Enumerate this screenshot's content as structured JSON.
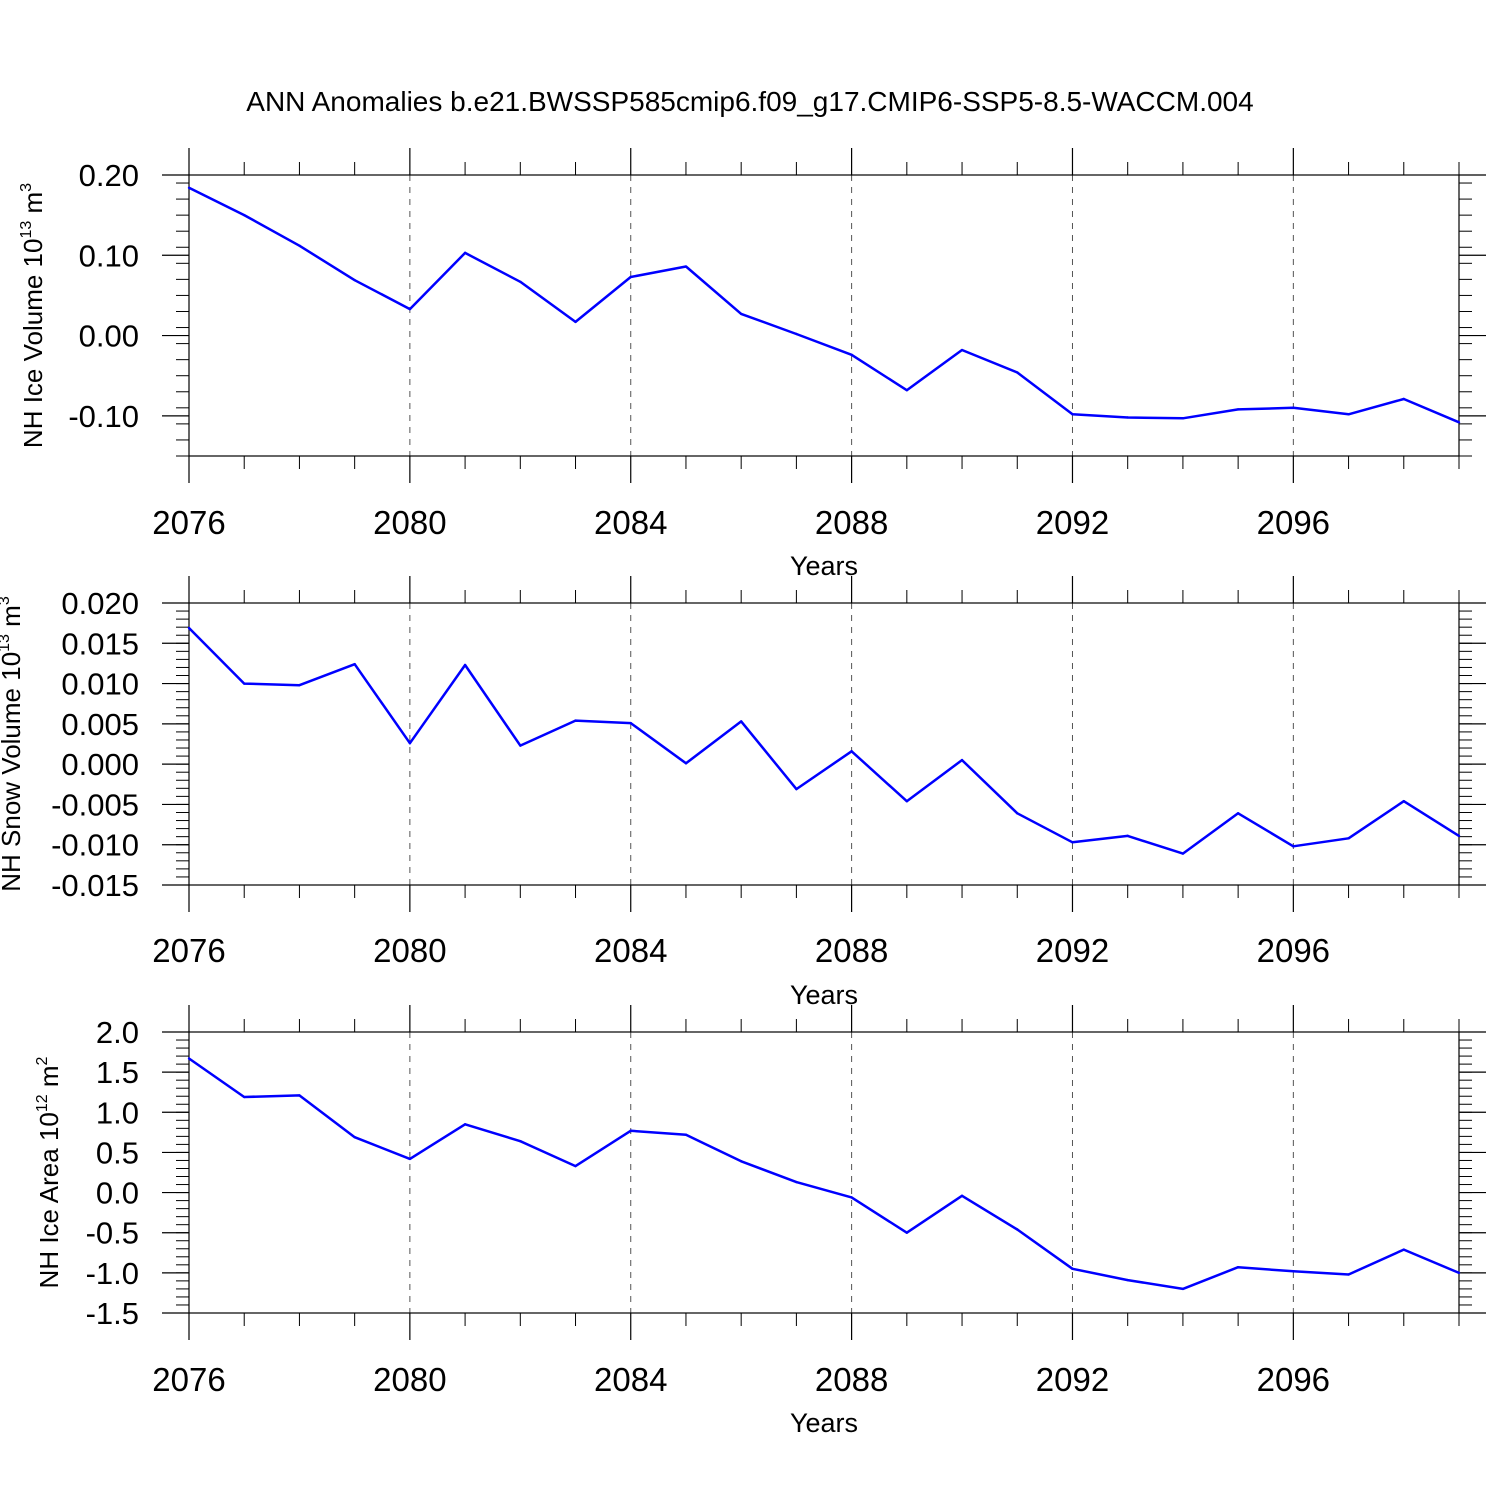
{
  "title": "ANN Anomalies b.e21.BWSSP585cmip6.f09_g17.CMIP6-SSP5-8.5-WACCM.004",
  "colors": {
    "line": "#0000ff",
    "axis": "#000000",
    "grid": "#555555"
  },
  "chart_data": [
    {
      "type": "line",
      "ylabel": {
        "main": "NH Ice Volume 10",
        "exp": "13",
        "unit": " m",
        "unit_exp": "3"
      },
      "xlabel": "Years",
      "xlim": [
        2076,
        2099
      ],
      "ylim": [
        -0.15,
        0.2
      ],
      "yticks": [
        0.2,
        0.1,
        0.0,
        -0.1
      ],
      "ytick_labels": [
        "0.20",
        "0.10",
        "0.00",
        "-0.10"
      ],
      "xticks": [
        2076,
        2080,
        2084,
        2088,
        2092,
        2096
      ],
      "xtick_labels": [
        "2076",
        "2080",
        "2084",
        "2088",
        "2092",
        "2096"
      ],
      "grid": "vertical dashed at major x ticks",
      "x": [
        2076,
        2077,
        2078,
        2079,
        2080,
        2081,
        2082,
        2083,
        2084,
        2085,
        2086,
        2087,
        2088,
        2089,
        2090,
        2091,
        2092,
        2093,
        2094,
        2095,
        2096,
        2097,
        2098,
        2099
      ],
      "values": [
        0.184,
        0.15,
        0.112,
        0.069,
        0.033,
        0.103,
        0.067,
        0.017,
        0.073,
        0.086,
        0.027,
        0.002,
        -0.024,
        -0.068,
        -0.018,
        -0.046,
        -0.098,
        -0.102,
        -0.103,
        -0.092,
        -0.09,
        -0.098,
        -0.079,
        -0.108
      ]
    },
    {
      "type": "line",
      "ylabel": {
        "main": "NH Snow Volume 10",
        "exp": "13",
        "unit": " m",
        "unit_exp": "3"
      },
      "xlabel": "Years",
      "xlim": [
        2076,
        2099
      ],
      "ylim": [
        -0.015,
        0.02
      ],
      "yticks": [
        0.02,
        0.015,
        0.01,
        0.005,
        0.0,
        -0.005,
        -0.01,
        -0.015
      ],
      "ytick_labels": [
        "0.020",
        "0.015",
        "0.010",
        "0.005",
        "0.000",
        "-0.005",
        "-0.010",
        "-0.015"
      ],
      "xticks": [
        2076,
        2080,
        2084,
        2088,
        2092,
        2096
      ],
      "xtick_labels": [
        "2076",
        "2080",
        "2084",
        "2088",
        "2092",
        "2096"
      ],
      "grid": "vertical dashed at major x ticks",
      "x": [
        2076,
        2077,
        2078,
        2079,
        2080,
        2081,
        2082,
        2083,
        2084,
        2085,
        2086,
        2087,
        2088,
        2089,
        2090,
        2091,
        2092,
        2093,
        2094,
        2095,
        2096,
        2097,
        2098,
        2099
      ],
      "values": [
        0.0169,
        0.01,
        0.0098,
        0.0124,
        0.0026,
        0.0123,
        0.0023,
        0.0054,
        0.0051,
        0.0001,
        0.0053,
        -0.0031,
        0.0016,
        -0.0046,
        0.0005,
        -0.0061,
        -0.0097,
        -0.0089,
        -0.0111,
        -0.0061,
        -0.0102,
        -0.0092,
        -0.0046,
        -0.0089
      ]
    },
    {
      "type": "line",
      "ylabel": {
        "main": "NH Ice Area 10",
        "exp": "12",
        "unit": " m",
        "unit_exp": "2"
      },
      "xlabel": "Years",
      "xlim": [
        2076,
        2099
      ],
      "ylim": [
        -1.5,
        2.0
      ],
      "yticks": [
        2.0,
        1.5,
        1.0,
        0.5,
        0.0,
        -0.5,
        -1.0,
        -1.5
      ],
      "ytick_labels": [
        "2.0",
        "1.5",
        "1.0",
        "0.5",
        "0.0",
        "-0.5",
        "-1.0",
        "-1.5"
      ],
      "xticks": [
        2076,
        2080,
        2084,
        2088,
        2092,
        2096
      ],
      "xtick_labels": [
        "2076",
        "2080",
        "2084",
        "2088",
        "2092",
        "2096"
      ],
      "grid": "vertical dashed at major x ticks",
      "x": [
        2076,
        2077,
        2078,
        2079,
        2080,
        2081,
        2082,
        2083,
        2084,
        2085,
        2086,
        2087,
        2088,
        2089,
        2090,
        2091,
        2092,
        2093,
        2094,
        2095,
        2096,
        2097,
        2098,
        2099
      ],
      "values": [
        1.67,
        1.19,
        1.21,
        0.69,
        0.42,
        0.85,
        0.64,
        0.33,
        0.77,
        0.72,
        0.39,
        0.13,
        -0.06,
        -0.5,
        -0.04,
        -0.46,
        -0.95,
        -1.09,
        -1.2,
        -0.93,
        -0.98,
        -1.02,
        -0.71,
        -1.0
      ]
    }
  ]
}
